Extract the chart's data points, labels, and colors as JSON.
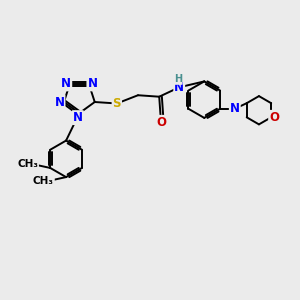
{
  "background_color": "#ebebeb",
  "bond_color": "#000000",
  "atom_colors": {
    "N": "#0000ff",
    "O": "#cc0000",
    "S": "#ccaa00",
    "H": "#4a9090",
    "C": "#000000"
  },
  "bond_lw": 1.4,
  "font_size_atom": 8.5,
  "fig_size": [
    3.0,
    3.0
  ],
  "dpi": 100
}
